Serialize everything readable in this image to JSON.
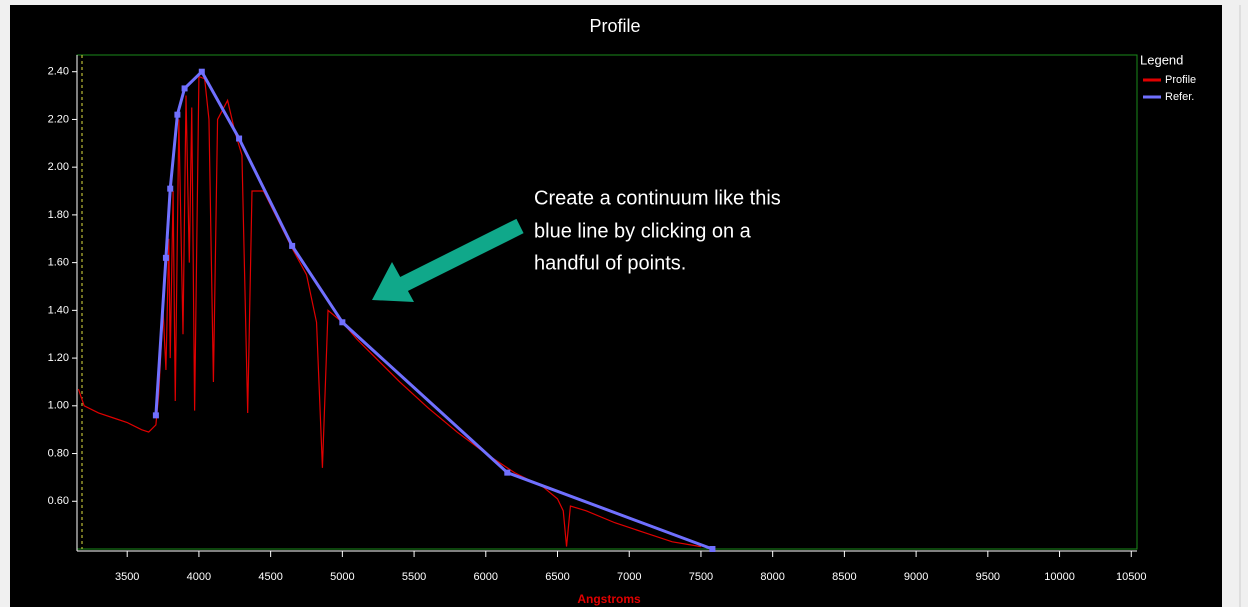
{
  "chart_data": {
    "type": "line",
    "title": "Profile",
    "x_label": "Angstroms",
    "annotation": [
      "Create a continuum like this",
      "blue line by clicking on a",
      "handful of points."
    ],
    "legend_title": "Legend",
    "xlim": [
      3150,
      10540
    ],
    "ylim": [
      0.4,
      2.47
    ],
    "xticks": [
      3500,
      4000,
      4500,
      5000,
      5500,
      6000,
      6500,
      7000,
      7500,
      8000,
      8500,
      9000,
      9500,
      10000,
      10500
    ],
    "yticks": [
      {
        "value": 0.6,
        "label": "0.60"
      },
      {
        "value": 0.8,
        "label": "0.80"
      },
      {
        "value": 1.0,
        "label": "1.00"
      },
      {
        "value": 1.2,
        "label": "1.20"
      },
      {
        "value": 1.4,
        "label": "1.40"
      },
      {
        "value": 1.6,
        "label": "1.60"
      },
      {
        "value": 1.8,
        "label": "1.80"
      },
      {
        "value": 2.0,
        "label": "2.00"
      },
      {
        "value": 2.2,
        "label": "2.20"
      },
      {
        "value": 2.4,
        "label": "2.40"
      }
    ],
    "series": [
      {
        "name": "Profile",
        "color": "#e00000",
        "x": [
          3160,
          3200,
          3300,
          3400,
          3500,
          3600,
          3650,
          3700,
          3720,
          3750,
          3770,
          3790,
          3800,
          3820,
          3835,
          3860,
          3889,
          3910,
          3933,
          3950,
          3970,
          4000,
          4040,
          4070,
          4101,
          4130,
          4200,
          4250,
          4300,
          4340,
          4370,
          4450,
          4550,
          4650,
          4750,
          4820,
          4861,
          4900,
          5000,
          5100,
          5200,
          5400,
          5600,
          5800,
          6000,
          6200,
          6400,
          6500,
          6540,
          6563,
          6590,
          6700,
          6900,
          7100,
          7300,
          7500
        ],
        "values": [
          1.07,
          1.0,
          0.97,
          0.95,
          0.93,
          0.9,
          0.89,
          0.92,
          1.05,
          1.4,
          1.15,
          1.7,
          1.2,
          1.9,
          1.02,
          2.2,
          1.3,
          2.3,
          1.6,
          2.25,
          0.98,
          2.38,
          2.37,
          2.2,
          1.1,
          2.2,
          2.28,
          2.15,
          2.05,
          0.97,
          1.9,
          1.9,
          1.78,
          1.66,
          1.55,
          1.35,
          0.74,
          1.4,
          1.35,
          1.28,
          1.22,
          1.1,
          0.99,
          0.89,
          0.8,
          0.72,
          0.66,
          0.61,
          0.56,
          0.41,
          0.58,
          0.56,
          0.51,
          0.47,
          0.43,
          0.41
        ]
      },
      {
        "name": "Refer.",
        "color": "#7070ff",
        "x": [
          3700,
          3770,
          3800,
          3850,
          3900,
          4020,
          4280,
          4650,
          5000,
          6150,
          7580
        ],
        "values": [
          0.96,
          1.62,
          1.91,
          2.22,
          2.33,
          2.4,
          2.12,
          1.67,
          1.35,
          0.72,
          0.4
        ]
      }
    ]
  }
}
